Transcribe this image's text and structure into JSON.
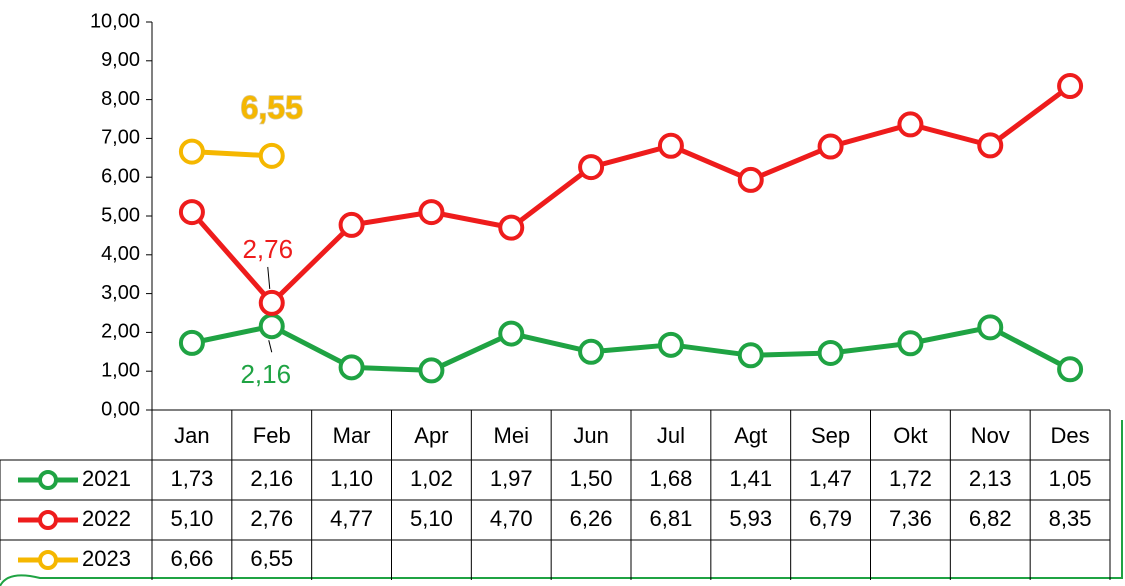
{
  "chart_data": {
    "type": "line",
    "categories": [
      "Jan",
      "Feb",
      "Mar",
      "Apr",
      "Mei",
      "Jun",
      "Jul",
      "Agt",
      "Sep",
      "Okt",
      "Nov",
      "Des"
    ],
    "series": [
      {
        "name": "2021",
        "color": "#1fa343",
        "values": [
          1.73,
          2.16,
          1.1,
          1.02,
          1.97,
          1.5,
          1.68,
          1.41,
          1.47,
          1.72,
          2.13,
          1.05
        ],
        "value_labels": [
          "1,73",
          "2,16",
          "1,10",
          "1,02",
          "1,97",
          "1,50",
          "1,68",
          "1,41",
          "1,47",
          "1,72",
          "2,13",
          "1,05"
        ]
      },
      {
        "name": "2022",
        "color": "#ee1c1c",
        "values": [
          5.1,
          2.76,
          4.77,
          5.1,
          4.7,
          6.26,
          6.81,
          5.93,
          6.79,
          7.36,
          6.82,
          8.35
        ],
        "value_labels": [
          "5,10",
          "2,76",
          "4,77",
          "5,10",
          "4,70",
          "6,26",
          "6,81",
          "5,93",
          "6,79",
          "7,36",
          "6,82",
          "8,35"
        ]
      },
      {
        "name": "2023",
        "color": "#f5b700",
        "values": [
          6.66,
          6.55,
          null,
          null,
          null,
          null,
          null,
          null,
          null,
          null,
          null,
          null
        ],
        "value_labels": [
          "6,66",
          "6,55",
          null,
          null,
          null,
          null,
          null,
          null,
          null,
          null,
          null,
          null
        ]
      }
    ],
    "ylim": [
      0,
      10
    ],
    "yticks": [
      {
        "value": 0,
        "label": "0,00"
      },
      {
        "value": 1,
        "label": "1,00"
      },
      {
        "value": 2,
        "label": "2,00"
      },
      {
        "value": 3,
        "label": "3,00"
      },
      {
        "value": 4,
        "label": "4,00"
      },
      {
        "value": 5,
        "label": "5,00"
      },
      {
        "value": 6,
        "label": "6,00"
      },
      {
        "value": 7,
        "label": "7,00"
      },
      {
        "value": 8,
        "label": "8,00"
      },
      {
        "value": 9,
        "label": "9,00"
      },
      {
        "value": 10,
        "label": "10,00"
      }
    ]
  }
}
